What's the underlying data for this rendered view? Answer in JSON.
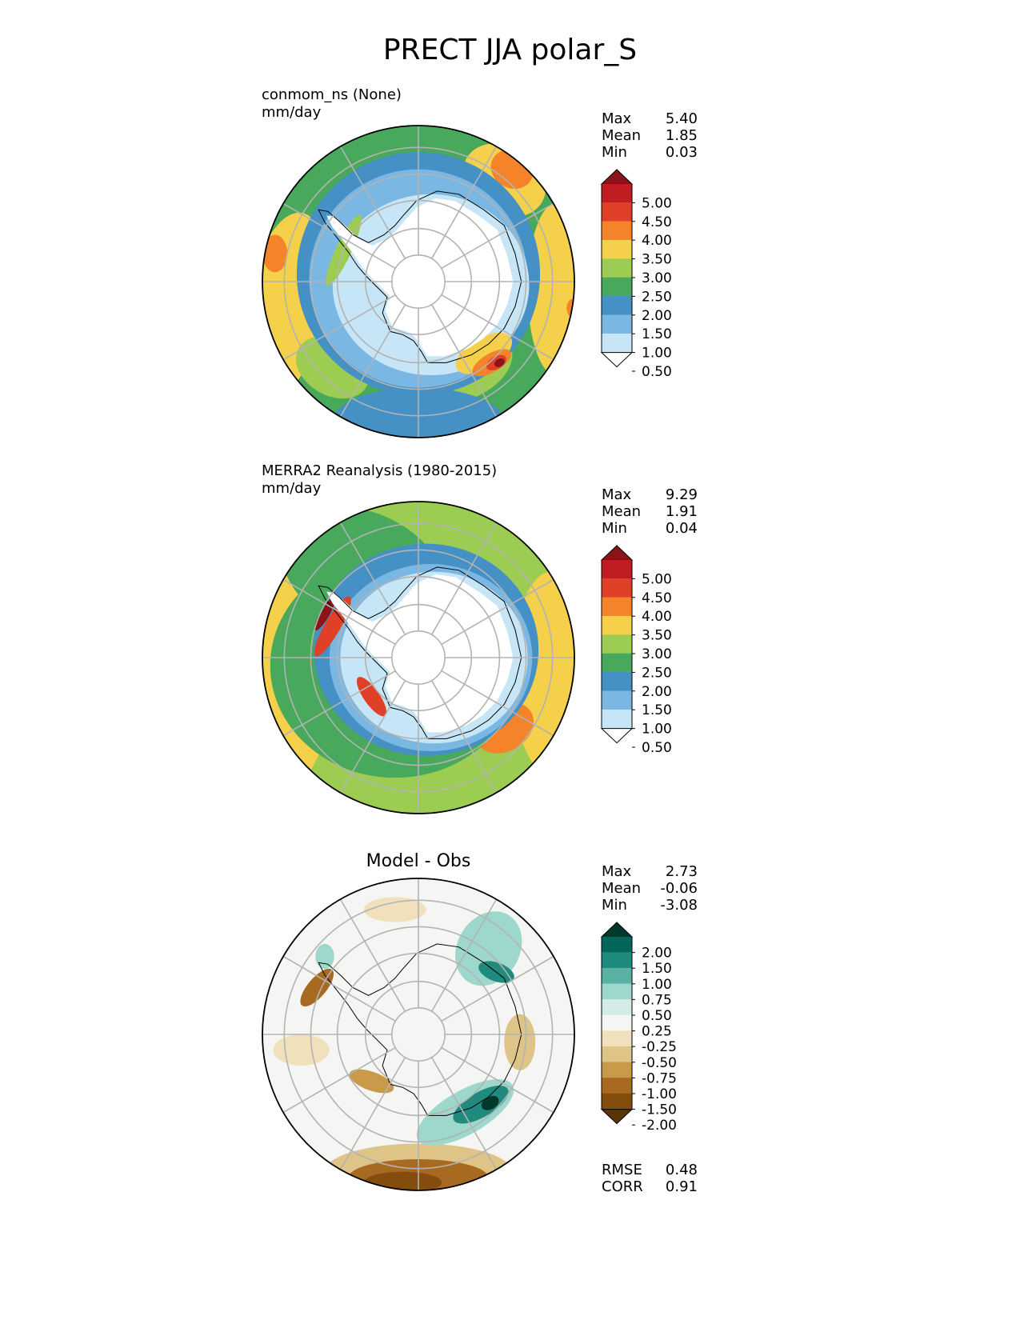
{
  "title": "PRECT JJA polar_S",
  "panels": [
    {
      "id": "test",
      "title_line1": "conmom_ns (None)",
      "title_line2": "mm/day",
      "stats": [
        {
          "label": "Max",
          "value": "5.40"
        },
        {
          "label": "Mean",
          "value": "1.85"
        },
        {
          "label": "Min",
          "value": "0.03"
        }
      ],
      "colorbar_labels": [
        "5.00",
        "4.50",
        "4.00",
        "3.50",
        "3.00",
        "2.50",
        "2.00",
        "1.50",
        "1.00",
        "0.50"
      ]
    },
    {
      "id": "reference",
      "title_line1": "MERRA2 Reanalysis (1980-2015)",
      "title_line2": "mm/day",
      "stats": [
        {
          "label": "Max",
          "value": "9.29"
        },
        {
          "label": "Mean",
          "value": "1.91"
        },
        {
          "label": "Min",
          "value": "0.04"
        }
      ],
      "colorbar_labels": [
        "5.00",
        "4.50",
        "4.00",
        "3.50",
        "3.00",
        "2.50",
        "2.00",
        "1.50",
        "1.00",
        "0.50"
      ]
    },
    {
      "id": "difference",
      "title": "Model - Obs",
      "stats": [
        {
          "label": "Max",
          "value": "2.73"
        },
        {
          "label": "Mean",
          "value": "-0.06"
        },
        {
          "label": "Min",
          "value": "-3.08"
        }
      ],
      "colorbar_labels": [
        "2.00",
        "1.50",
        "1.00",
        "0.75",
        "0.50",
        "0.25",
        "-0.25",
        "-0.50",
        "-0.75",
        "-1.00",
        "-1.50",
        "-2.00"
      ],
      "metrics": [
        {
          "label": "RMSE",
          "value": "0.48"
        },
        {
          "label": "CORR",
          "value": "0.91"
        }
      ]
    }
  ],
  "colors": {
    "precip_scale": [
      "#ffffff",
      "#c6e6f7",
      "#7ab8e3",
      "#4590c4",
      "#48a85c",
      "#9ccc52",
      "#f5d04b",
      "#f5832a",
      "#e04028",
      "#c01d22",
      "#8b1419"
    ],
    "diff_scale": [
      "#5a3505",
      "#844c0d",
      "#a86a20",
      "#c99a4a",
      "#dfc488",
      "#f0e0bc",
      "#f5f5f3",
      "#d3ece6",
      "#9ed7cb",
      "#5ab2a4",
      "#208a7e",
      "#036659",
      "#00382d"
    ],
    "ocean_base_test": "#48a85c",
    "ocean_base_ref": "#9ccc52",
    "land_interior": "#ffffff"
  }
}
